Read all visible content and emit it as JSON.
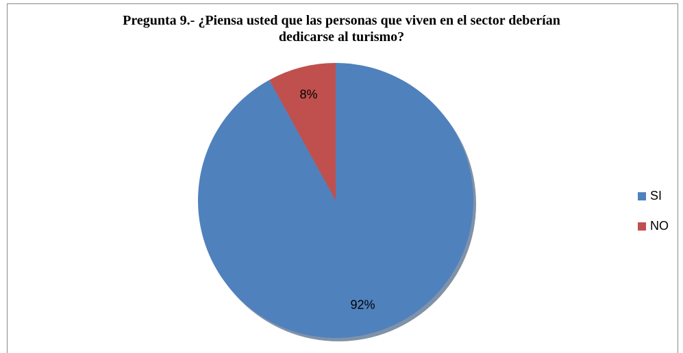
{
  "chart_data": {
    "type": "pie",
    "title": "Pregunta 9.- ¿Piensa usted que las personas que viven en el sector deberían dedicarse al turismo?",
    "categories": [
      "SI",
      "NO"
    ],
    "values": [
      92,
      8
    ],
    "value_labels": [
      "92%",
      "8%"
    ],
    "colors": [
      "#4f81bd",
      "#c0504d"
    ],
    "legend": "right"
  }
}
